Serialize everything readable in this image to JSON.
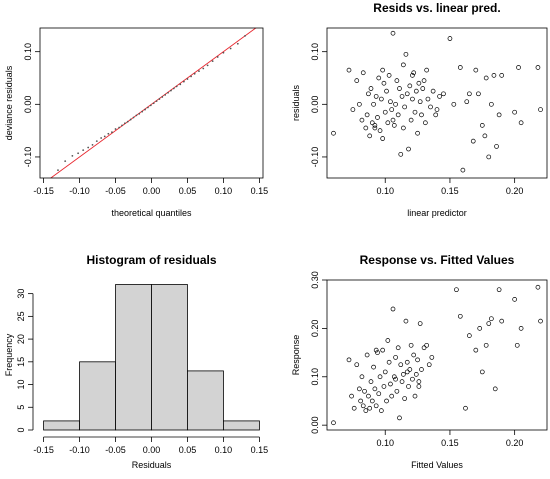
{
  "chart_data": [
    {
      "type": "scatter",
      "title": "",
      "xlabel": "theoretical quantiles",
      "ylabel": "deviance residuals",
      "xlim": [
        -0.155,
        0.155
      ],
      "ylim": [
        -0.14,
        0.145
      ],
      "xticks": [
        "-0.15",
        "-0.10",
        "-0.05",
        "0.00",
        "0.05",
        "0.10",
        "0.15"
      ],
      "xtick_values": [
        -0.15,
        -0.1,
        -0.05,
        0.0,
        0.05,
        0.1,
        0.15
      ],
      "yticks": [
        "-0.10",
        "0.00",
        "0.10"
      ],
      "ytick_values": [
        -0.1,
        0.0,
        0.1
      ],
      "reference_line": {
        "x": [
          -0.155,
          0.155
        ],
        "y": [
          -0.155,
          0.155
        ],
        "color": "#e8272f"
      },
      "point_color": "#555555",
      "x": [
        -0.13,
        -0.12,
        -0.11,
        -0.102,
        -0.095,
        -0.088,
        -0.082,
        -0.076,
        -0.07,
        -0.065,
        -0.06,
        -0.055,
        -0.05,
        -0.045,
        -0.041,
        -0.037,
        -0.033,
        -0.029,
        -0.025,
        -0.021,
        -0.017,
        -0.013,
        -0.009,
        -0.005,
        -0.001,
        0.003,
        0.007,
        0.011,
        0.015,
        0.019,
        0.023,
        0.027,
        0.031,
        0.035,
        0.04,
        0.045,
        0.05,
        0.055,
        0.06,
        0.066,
        0.072,
        0.078,
        0.085,
        0.092,
        0.1,
        0.11,
        0.12,
        0.13
      ],
      "y": [
        -0.125,
        -0.108,
        -0.098,
        -0.093,
        -0.087,
        -0.082,
        -0.077,
        -0.07,
        -0.064,
        -0.061,
        -0.056,
        -0.053,
        -0.047,
        -0.044,
        -0.04,
        -0.036,
        -0.033,
        -0.029,
        -0.025,
        -0.021,
        -0.018,
        -0.014,
        -0.01,
        -0.006,
        -0.002,
        0.002,
        0.006,
        0.01,
        0.014,
        0.018,
        0.022,
        0.026,
        0.03,
        0.034,
        0.038,
        0.043,
        0.048,
        0.053,
        0.058,
        0.063,
        0.068,
        0.074,
        0.082,
        0.09,
        0.098,
        0.106,
        0.115,
        0.13
      ]
    },
    {
      "type": "scatter",
      "title": "Resids vs. linear pred.",
      "xlabel": "linear predictor",
      "ylabel": "residuals",
      "xlim": [
        0.055,
        0.225
      ],
      "ylim": [
        -0.14,
        0.145
      ],
      "xticks": [
        "0.10",
        "0.15",
        "0.20"
      ],
      "xtick_values": [
        0.1,
        0.15,
        0.2
      ],
      "yticks": [
        "-0.10",
        "0.00",
        "0.10"
      ],
      "ytick_values": [
        -0.1,
        0.0,
        0.1
      ],
      "x": [
        0.06,
        0.072,
        0.075,
        0.078,
        0.08,
        0.082,
        0.083,
        0.085,
        0.086,
        0.087,
        0.088,
        0.089,
        0.09,
        0.091,
        0.092,
        0.093,
        0.094,
        0.095,
        0.096,
        0.097,
        0.098,
        0.099,
        0.1,
        0.101,
        0.102,
        0.103,
        0.104,
        0.105,
        0.106,
        0.107,
        0.108,
        0.109,
        0.11,
        0.111,
        0.112,
        0.113,
        0.114,
        0.115,
        0.116,
        0.117,
        0.118,
        0.119,
        0.12,
        0.121,
        0.122,
        0.123,
        0.124,
        0.125,
        0.126,
        0.127,
        0.128,
        0.129,
        0.13,
        0.131,
        0.132,
        0.133,
        0.135,
        0.137,
        0.139,
        0.14,
        0.142,
        0.145,
        0.15,
        0.153,
        0.158,
        0.16,
        0.163,
        0.165,
        0.168,
        0.17,
        0.172,
        0.175,
        0.177,
        0.178,
        0.18,
        0.182,
        0.184,
        0.186,
        0.188,
        0.19,
        0.2,
        0.203,
        0.205,
        0.218,
        0.22,
        0.092,
        0.098,
        0.106,
        0.114,
        0.121
      ],
      "y": [
        -0.055,
        0.065,
        -0.01,
        0.045,
        0.0,
        -0.03,
        0.06,
        -0.045,
        -0.02,
        0.02,
        -0.06,
        0.03,
        -0.035,
        0.0,
        -0.045,
        0.015,
        -0.025,
        0.05,
        -0.05,
        0.01,
        -0.065,
        0.04,
        -0.015,
        0.025,
        -0.035,
        0.055,
        0.005,
        -0.01,
        0.135,
        -0.04,
        0.0,
        0.045,
        -0.02,
        0.03,
        -0.095,
        0.015,
        -0.045,
        -0.005,
        0.095,
        0.02,
        -0.085,
        0.035,
        -0.03,
        0.01,
        0.06,
        -0.015,
        0.025,
        -0.055,
        0.04,
        0.005,
        -0.02,
        0.03,
        0.045,
        -0.035,
        0.065,
        0.01,
        -0.005,
        0.025,
        -0.02,
        -0.01,
        0.015,
        0.02,
        0.125,
        0.0,
        0.07,
        -0.125,
        0.005,
        0.02,
        -0.07,
        0.065,
        0.02,
        -0.04,
        -0.06,
        0.05,
        -0.1,
        0.0,
        0.055,
        -0.08,
        -0.02,
        0.055,
        -0.015,
        0.07,
        -0.035,
        0.07,
        -0.01,
        -0.04,
        0.065,
        -0.03,
        0.075,
        0.055
      ],
      "point_color": "#000000"
    },
    {
      "type": "bar",
      "title": "Histogram of residuals",
      "xlabel": "Residuals",
      "ylabel": "Frequency",
      "bin_edges": [
        -0.15,
        -0.1,
        -0.05,
        0.0,
        0.05,
        0.1,
        0.15
      ],
      "values": [
        2,
        15,
        32,
        32,
        13,
        2
      ],
      "xlim": [
        -0.155,
        0.155
      ],
      "ylim": [
        0,
        33
      ],
      "xticks": [
        "-0.15",
        "-0.10",
        "-0.05",
        "0.00",
        "0.05",
        "0.10",
        "0.15"
      ],
      "xtick_values": [
        -0.15,
        -0.1,
        -0.05,
        0.0,
        0.05,
        0.1,
        0.15
      ],
      "yticks": [
        "0",
        "5",
        "10",
        "15",
        "20",
        "25",
        "30"
      ],
      "ytick_values": [
        0,
        5,
        10,
        15,
        20,
        25,
        30
      ],
      "bar_color": "#d3d3d3"
    },
    {
      "type": "scatter",
      "title": "Response vs. Fitted Values",
      "xlabel": "Fitted Values",
      "ylabel": "Response",
      "xlim": [
        0.055,
        0.225
      ],
      "ylim": [
        -0.01,
        0.3
      ],
      "xticks": [
        "0.10",
        "0.15",
        "0.20"
      ],
      "xtick_values": [
        0.1,
        0.15,
        0.2
      ],
      "yticks": [
        "0.00",
        "0.10",
        "0.20",
        "0.30"
      ],
      "ytick_values": [
        0.0,
        0.1,
        0.2,
        0.3
      ],
      "x": [
        0.06,
        0.072,
        0.074,
        0.076,
        0.078,
        0.08,
        0.081,
        0.082,
        0.083,
        0.084,
        0.085,
        0.086,
        0.087,
        0.088,
        0.089,
        0.09,
        0.091,
        0.092,
        0.093,
        0.094,
        0.095,
        0.096,
        0.097,
        0.098,
        0.099,
        0.1,
        0.101,
        0.102,
        0.103,
        0.104,
        0.105,
        0.106,
        0.107,
        0.108,
        0.109,
        0.11,
        0.111,
        0.112,
        0.113,
        0.114,
        0.115,
        0.116,
        0.117,
        0.118,
        0.119,
        0.12,
        0.121,
        0.122,
        0.123,
        0.124,
        0.125,
        0.126,
        0.127,
        0.128,
        0.13,
        0.132,
        0.134,
        0.136,
        0.155,
        0.158,
        0.162,
        0.165,
        0.17,
        0.173,
        0.175,
        0.178,
        0.18,
        0.182,
        0.185,
        0.188,
        0.19,
        0.2,
        0.202,
        0.205,
        0.218,
        0.22,
        0.093,
        0.108,
        0.117,
        0.126
      ],
      "y": [
        0.005,
        0.135,
        0.06,
        0.035,
        0.125,
        0.075,
        0.05,
        0.1,
        0.04,
        0.07,
        0.03,
        0.145,
        0.06,
        0.035,
        0.09,
        0.05,
        0.12,
        0.075,
        0.04,
        0.15,
        0.065,
        0.1,
        0.03,
        0.155,
        0.08,
        0.11,
        0.05,
        0.175,
        0.13,
        0.085,
        0.06,
        0.24,
        0.1,
        0.14,
        0.07,
        0.16,
        0.015,
        0.125,
        0.09,
        0.105,
        0.055,
        0.215,
        0.13,
        0.08,
        0.115,
        0.165,
        0.095,
        0.145,
        0.06,
        0.105,
        0.135,
        0.08,
        0.21,
        0.115,
        0.16,
        0.165,
        0.125,
        0.14,
        0.28,
        0.225,
        0.035,
        0.185,
        0.155,
        0.2,
        0.11,
        0.165,
        0.21,
        0.22,
        0.075,
        0.28,
        0.215,
        0.26,
        0.165,
        0.2,
        0.285,
        0.215,
        0.155,
        0.095,
        0.11,
        0.09
      ],
      "point_color": "#000000"
    }
  ]
}
